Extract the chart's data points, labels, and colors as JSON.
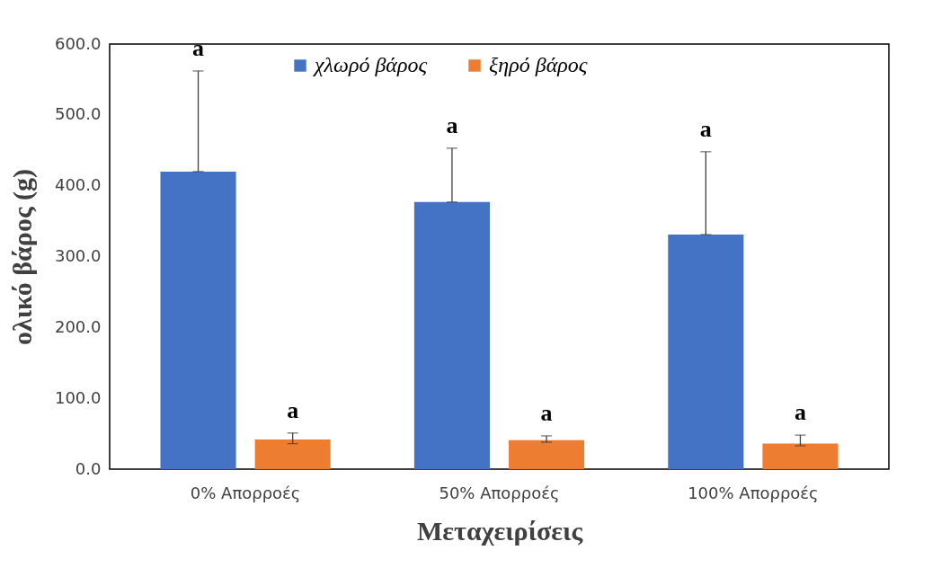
{
  "chart_data": {
    "type": "bar",
    "xlabel": "Μεταχειρίσεις",
    "ylabel": "ολικό βάρος (g)",
    "categories": [
      "0% Απορροές",
      "50% Απορροές",
      "100% Απορροές"
    ],
    "series": [
      {
        "name": "χλωρό βάρος",
        "color": "#4472c4",
        "values": [
          420,
          377,
          331
        ],
        "errors": [
          [
            420,
            562
          ],
          [
            377,
            453
          ],
          [
            331,
            448
          ]
        ]
      },
      {
        "name": "ξηρό βάρος",
        "color": "#ed7d31",
        "values": [
          42,
          41,
          36
        ],
        "errors": [
          [
            36,
            51
          ],
          [
            38,
            47
          ],
          [
            33,
            48
          ]
        ]
      }
    ],
    "ylim": [
      0,
      600
    ],
    "yticks": [
      {
        "value": 0,
        "label": "0.0"
      },
      {
        "value": 100,
        "label": "100.0"
      },
      {
        "value": 200,
        "label": "200.0"
      },
      {
        "value": 300,
        "label": "300.0"
      },
      {
        "value": 400,
        "label": "400.0"
      },
      {
        "value": 500,
        "label": "500.0"
      },
      {
        "value": 600,
        "label": "600.0"
      }
    ],
    "grid": false,
    "legend": "top",
    "annotations": [
      "a",
      "a",
      "a",
      "a",
      "a",
      "a"
    ]
  }
}
